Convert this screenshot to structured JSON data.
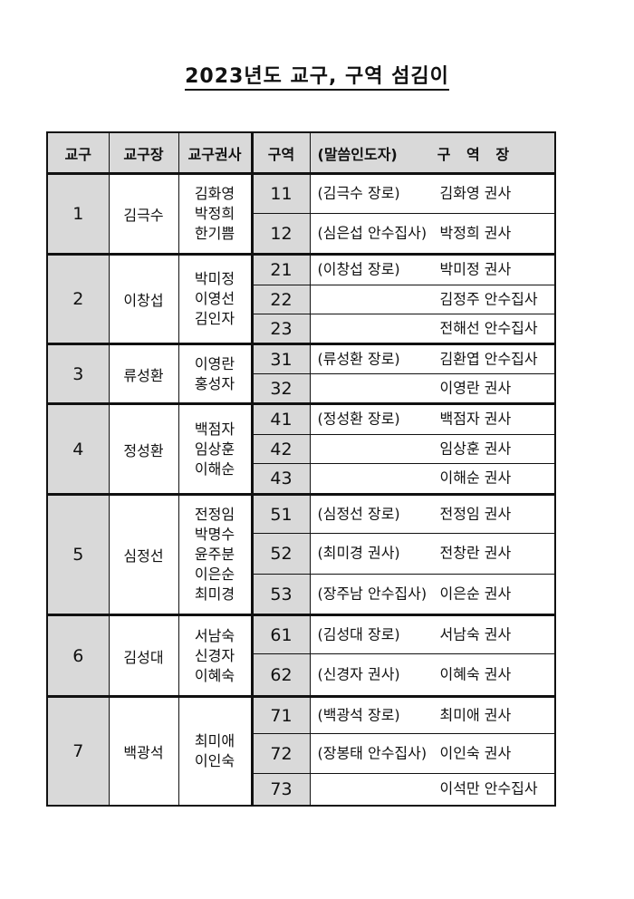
{
  "title": "2023년도 교구, 구역 섬김이",
  "headers": {
    "district": "교구",
    "district_leader": "교구장",
    "district_deaconess": "교구권사",
    "zone": "구역",
    "zone_preacher": "(말씀인도자)",
    "zone_leader": "구 역 장"
  },
  "groups": [
    {
      "district": "1",
      "leader": "김극수",
      "deaconesses": [
        "김화영",
        "박정희",
        "한기쁨"
      ],
      "zones": [
        {
          "zone": "11",
          "preacher": "(김극수 장로)",
          "head": "김화영 권사"
        },
        {
          "zone": "12",
          "preacher": "(심은섭 안수집사)",
          "head": "박정희 권사"
        }
      ]
    },
    {
      "district": "2",
      "leader": "이창섭",
      "deaconesses": [
        "박미정",
        "이영선",
        "김인자"
      ],
      "zones": [
        {
          "zone": "21",
          "preacher": "(이창섭 장로)",
          "head": "박미정 권사"
        },
        {
          "zone": "22",
          "preacher": "",
          "head": "김정주 안수집사"
        },
        {
          "zone": "23",
          "preacher": "",
          "head": "전해선 안수집사"
        }
      ]
    },
    {
      "district": "3",
      "leader": "류성환",
      "deaconesses": [
        "이영란",
        "홍성자"
      ],
      "zones": [
        {
          "zone": "31",
          "preacher": "(류성환 장로)",
          "head": "김환엽 안수집사"
        },
        {
          "zone": "32",
          "preacher": "",
          "head": "이영란 권사"
        }
      ]
    },
    {
      "district": "4",
      "leader": "정성환",
      "deaconesses": [
        "백점자",
        "임상훈",
        "이해순"
      ],
      "zones": [
        {
          "zone": "41",
          "preacher": "(정성환 장로)",
          "head": "백점자 권사"
        },
        {
          "zone": "42",
          "preacher": "",
          "head": "임상훈 권사"
        },
        {
          "zone": "43",
          "preacher": "",
          "head": "이해순 권사"
        }
      ]
    },
    {
      "district": "5",
      "leader": "심정선",
      "deaconesses": [
        "전정임",
        "박명수",
        "윤주분",
        "이은순",
        "최미경"
      ],
      "zones": [
        {
          "zone": "51",
          "preacher": "(심정선 장로)",
          "head": "전정임 권사"
        },
        {
          "zone": "52",
          "preacher": "(최미경 권사)",
          "head": "전창란 권사"
        },
        {
          "zone": "53",
          "preacher": "(장주남 안수집사)",
          "head": "이은순 권사"
        }
      ]
    },
    {
      "district": "6",
      "leader": "김성대",
      "deaconesses": [
        "서남숙",
        "신경자",
        "이혜숙"
      ],
      "zones": [
        {
          "zone": "61",
          "preacher": "(김성대 장로)",
          "head": "서남숙 권사"
        },
        {
          "zone": "62",
          "preacher": "(신경자 권사)",
          "head": "이혜숙 권사"
        }
      ]
    },
    {
      "district": "7",
      "leader": "백광석",
      "deaconesses": [
        "최미애",
        "이인숙"
      ],
      "zones": [
        {
          "zone": "71",
          "preacher": "(백광석 장로)",
          "head": "최미애 권사"
        },
        {
          "zone": "72",
          "preacher": "(장봉태 안수집사)",
          "head": "이인숙 권사"
        },
        {
          "zone": "73",
          "preacher": "",
          "head": "이석만 안수집사"
        }
      ]
    }
  ]
}
